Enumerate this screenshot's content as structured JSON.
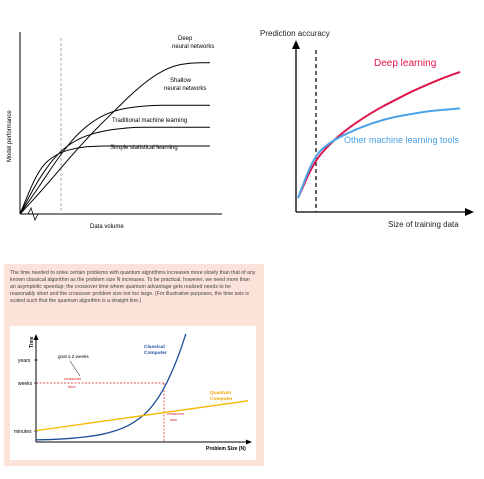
{
  "chart_data": [
    {
      "type": "line",
      "xlabel": "Data volume",
      "ylabel": "Model performance",
      "series": [
        {
          "name": "Deep neural networks",
          "name_lines": [
            "Deep",
            "neural networks"
          ],
          "color": "#000000",
          "x": [
            0,
            1,
            2,
            3,
            4,
            5,
            6,
            7,
            8,
            9,
            10
          ],
          "y": [
            0,
            1.2,
            2.5,
            3.8,
            5.0,
            6.1,
            7.2,
            8.1,
            8.7,
            8.9,
            8.9
          ]
        },
        {
          "name": "Shallow neural networks",
          "name_lines": [
            "Shallow",
            "neural networks"
          ],
          "color": "#000000",
          "x": [
            0,
            1,
            2,
            3,
            4,
            5,
            6,
            7,
            8,
            9,
            10
          ],
          "y": [
            0,
            1.6,
            3.3,
            4.7,
            5.6,
            6.1,
            6.3,
            6.4,
            6.4,
            6.4,
            6.4
          ]
        },
        {
          "name": "Traditional machine learning",
          "name_lines": [
            "Traditional machine learning"
          ],
          "color": "#000000",
          "x": [
            0,
            1,
            2,
            3,
            4,
            5,
            6,
            7,
            8,
            9,
            10
          ],
          "y": [
            0,
            2.1,
            3.6,
            4.4,
            4.8,
            5.0,
            5.1,
            5.1,
            5.1,
            5.1,
            5.1
          ]
        },
        {
          "name": "Simple statistical learning",
          "name_lines": [
            "Simple statistical learning"
          ],
          "color": "#000000",
          "x": [
            0,
            1,
            2,
            3,
            4,
            5,
            6,
            7,
            8,
            9,
            10
          ],
          "y": [
            0,
            2.7,
            3.6,
            3.9,
            4.0,
            4.0,
            4.0,
            4.0,
            4.0,
            4.0,
            4.0
          ]
        }
      ],
      "xlim": [
        0,
        10
      ],
      "ylim": [
        0,
        10
      ],
      "grid": false,
      "legend": "inline"
    },
    {
      "type": "line",
      "ylabel": "Prediction accuracy",
      "xlabel": "Size of training data",
      "series": [
        {
          "name": "Deep learning",
          "color": "#e0164a",
          "x": [
            0,
            1,
            2,
            3,
            4,
            5,
            6,
            7,
            8,
            9,
            10
          ],
          "y": [
            1.0,
            3.6,
            4.9,
            5.9,
            6.7,
            7.4,
            8.0,
            8.6,
            9.1,
            9.6,
            10.0
          ]
        },
        {
          "name": "Other machine learning tools",
          "color": "#4aa3e6",
          "x": [
            0,
            1,
            2,
            3,
            4,
            5,
            6,
            7,
            8,
            9,
            10
          ],
          "y": [
            1.0,
            4.0,
            5.0,
            5.6,
            6.1,
            6.5,
            6.8,
            7.0,
            7.2,
            7.3,
            7.4
          ]
        }
      ],
      "xlim": [
        0,
        10
      ],
      "ylim": [
        0,
        12
      ],
      "grid": false,
      "legend": "inline"
    },
    {
      "type": "line",
      "caption": "The time needed to solve certain problems with quantum algorithms increases more slowly than that of any known classical algorithm as the problem size N increases. To be practical, however, we need more than an asymptotic speedup; the crossover time where quantum advantage gets realized needs to be reasonably short and the crossover problem size not too large. (For illustrative purposes, the time axis is scaled such that the quantum algorithm is a straight line.)",
      "xlabel": "Problem Size (N)",
      "ylabel": "Time",
      "ytick_labels": [
        "minutes",
        "weeks",
        "years"
      ],
      "annotations": {
        "goal": "goal ≤ 2 weeks",
        "crossover_time": [
          "crossover",
          "time"
        ],
        "crossover_size": [
          "crossover",
          "size"
        ]
      },
      "series": [
        {
          "name": "Classical Computer",
          "name_lines": [
            "Classical",
            "Computer"
          ],
          "color": "#1f4e9c",
          "x": [
            0,
            1,
            2,
            3,
            4,
            5,
            6,
            7,
            8,
            9,
            10,
            10.6
          ],
          "y": [
            0.15,
            0.17,
            0.22,
            0.3,
            0.42,
            0.6,
            0.9,
            1.4,
            2.2,
            3.6,
            5.8,
            7.6
          ]
        },
        {
          "name": "Quantum Computer",
          "name_lines": [
            "Quantum",
            "Computer"
          ],
          "color": "#f5b800",
          "x": [
            0,
            15
          ],
          "y": [
            0.8,
            2.9
          ]
        }
      ],
      "xlim": [
        0,
        15
      ],
      "ylim": [
        0,
        7.6
      ],
      "grid": false
    }
  ]
}
